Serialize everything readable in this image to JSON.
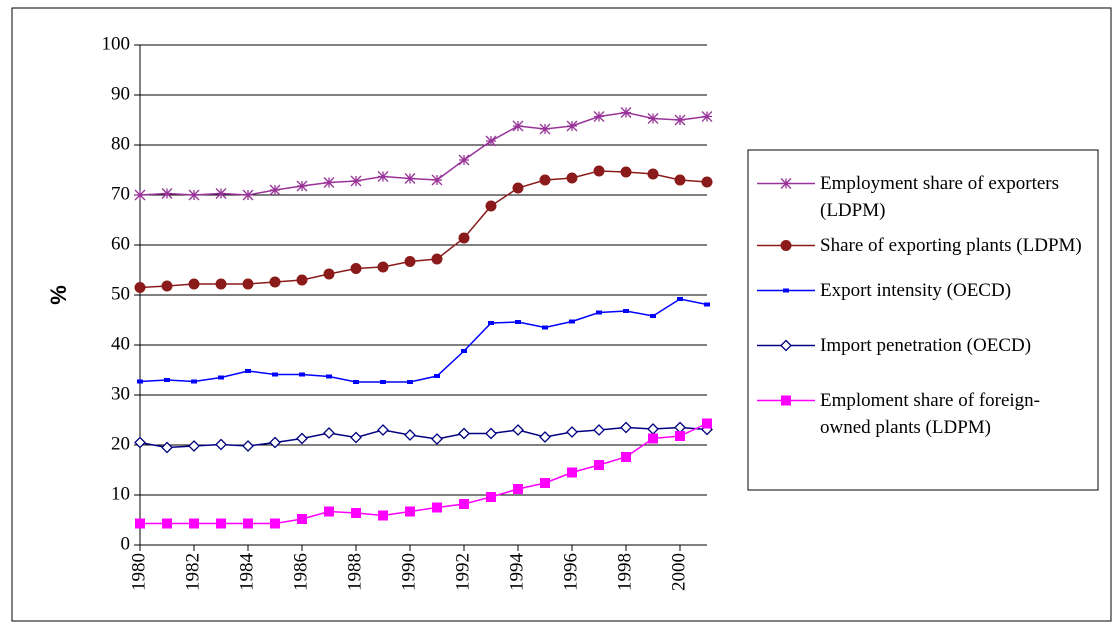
{
  "chart_data": {
    "type": "line",
    "y_label": "%",
    "x": [
      1980,
      1981,
      1982,
      1983,
      1984,
      1985,
      1986,
      1987,
      1988,
      1989,
      1990,
      1991,
      1992,
      1993,
      1994,
      1995,
      1996,
      1997,
      1998,
      1999,
      2000,
      2001
    ],
    "xlim": [
      1980,
      2001
    ],
    "xticks": [
      1980,
      1982,
      1984,
      1986,
      1988,
      1990,
      1992,
      1994,
      1996,
      1998,
      2000
    ],
    "ylim": [
      0,
      100
    ],
    "yticks": [
      0,
      10,
      20,
      30,
      40,
      50,
      60,
      70,
      80,
      90,
      100
    ],
    "grid": true,
    "legend": "right",
    "series": [
      {
        "name": "Employment share of exporters (LDPM)",
        "color": "#993399",
        "marker": "star",
        "values": [
          70,
          70.3,
          70,
          70.3,
          70,
          71,
          71.8,
          72.5,
          72.8,
          73.7,
          73.3,
          73,
          77,
          80.8,
          83.8,
          83.2,
          83.8,
          85.7,
          86.5,
          85.3,
          85,
          85.7
        ]
      },
      {
        "name": "Share of exporting plants (LDPM)",
        "color": "#8b1a1a",
        "marker": "circle",
        "values": [
          51.5,
          51.8,
          52.2,
          52.2,
          52.2,
          52.6,
          53,
          54.2,
          55.3,
          55.6,
          56.7,
          57.2,
          61.4,
          67.8,
          71.4,
          73,
          73.4,
          74.8,
          74.6,
          74.2,
          73,
          72.6
        ]
      },
      {
        "name": "Export intensity (OECD)",
        "color": "#0000ff",
        "marker": "dash",
        "values": [
          32.7,
          33,
          32.7,
          33.5,
          34.8,
          34.1,
          34.1,
          33.7,
          32.6,
          32.6,
          32.6,
          33.8,
          38.8,
          44.4,
          44.6,
          43.5,
          44.7,
          46.5,
          46.8,
          45.8,
          49.2,
          48.1
        ]
      },
      {
        "name": "Import penetration (OECD)",
        "color": "#000080",
        "marker": "diamond",
        "values": [
          20.5,
          19.5,
          19.8,
          20.1,
          19.8,
          20.5,
          21.3,
          22.4,
          21.5,
          23,
          22,
          21.2,
          22.3,
          22.3,
          23,
          21.6,
          22.6,
          23,
          23.5,
          23.2,
          23.5,
          23.1
        ]
      },
      {
        "name": "Emploment share of foreign-owned plants (LDPM)",
        "color": "#ff00ff",
        "marker": "square",
        "values": [
          4.3,
          4.3,
          4.3,
          4.3,
          4.3,
          4.3,
          5.2,
          6.7,
          6.4,
          5.9,
          6.7,
          7.5,
          8.2,
          9.6,
          11.2,
          12.4,
          14.5,
          16,
          17.6,
          21.3,
          21.8,
          24.3
        ]
      }
    ]
  }
}
